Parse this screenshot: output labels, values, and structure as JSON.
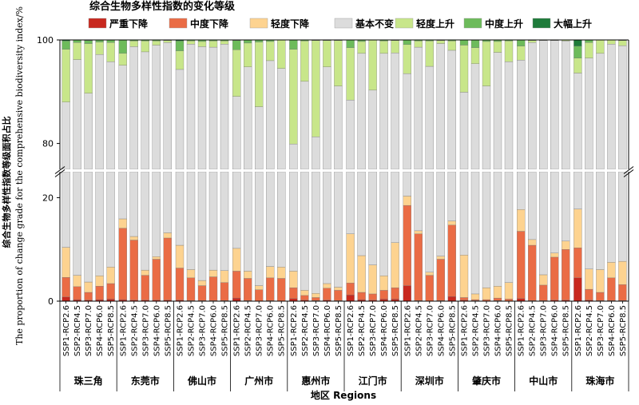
{
  "chart_data": {
    "type": "bar",
    "stacked": true,
    "legend_title": "综合生物多样性指数的变化等级",
    "ylabel_cn": "综合生物多样性指数等级面积占比",
    "ylabel_en": "The proportion of change grade for the comprehensive biodiversity index/%",
    "xlabel": "地区 Regions",
    "y_axis_break": true,
    "y_segments": [
      [
        0,
        25
      ],
      [
        75,
        100
      ]
    ],
    "yticks": [
      0,
      20,
      80,
      100
    ],
    "grid": false,
    "legend_position": "top-left",
    "colors": [
      "#c8281e",
      "#ea6c45",
      "#fdd390",
      "#dcdcdc",
      "#c8e68a",
      "#6dbb5b",
      "#1e7b3a"
    ],
    "series_names": [
      "严重下降",
      "中度下降",
      "轻度下降",
      "基本不变",
      "轻度上升",
      "中度上升",
      "大幅上升"
    ],
    "scenarios": [
      "SSP1-RCP2.6",
      "SSP2-RCP4.5",
      "SSP3-RCP7.0",
      "SSP4-RCP6.0",
      "SSP5-RCP8.5"
    ],
    "regions": [
      {
        "name": "珠三角",
        "bars": [
          [
            0.8,
            3.8,
            5.8,
            77.6,
            10.2,
            1.6,
            0.2
          ],
          [
            0.3,
            2.5,
            2.2,
            91.2,
            3.3,
            0.5,
            0.0
          ],
          [
            0.2,
            1.5,
            2.0,
            86.0,
            9.6,
            0.6,
            0.1
          ],
          [
            0.3,
            2.6,
            2.0,
            92.3,
            2.4,
            0.4,
            0.0
          ],
          [
            0.4,
            3.0,
            3.2,
            89.2,
            3.7,
            0.5,
            0.0
          ]
        ]
      },
      {
        "name": "东莞市",
        "bars": [
          [
            0.3,
            13.8,
            1.8,
            79.2,
            2.3,
            2.6,
            0.0
          ],
          [
            0.2,
            11.6,
            0.7,
            86.2,
            1.1,
            0.2,
            0.0
          ],
          [
            0.2,
            4.8,
            1.0,
            91.7,
            2.1,
            0.2,
            0.0
          ],
          [
            0.2,
            7.9,
            0.5,
            90.4,
            0.8,
            0.2,
            0.0
          ],
          [
            0.2,
            12.0,
            1.0,
            86.3,
            0.4,
            0.1,
            0.0
          ]
        ]
      },
      {
        "name": "佛山市",
        "bars": [
          [
            0.2,
            6.2,
            4.4,
            83.5,
            3.6,
            1.9,
            0.2
          ],
          [
            0.1,
            4.4,
            1.6,
            93.1,
            0.6,
            0.2,
            0.0
          ],
          [
            0.1,
            2.9,
            1.0,
            94.7,
            1.0,
            0.3,
            0.0
          ],
          [
            0.1,
            4.6,
            1.3,
            92.6,
            1.2,
            0.2,
            0.0
          ],
          [
            0.1,
            3.5,
            2.3,
            93.3,
            0.6,
            0.2,
            0.0
          ]
        ]
      },
      {
        "name": "广州市",
        "bars": [
          [
            0.6,
            5.2,
            4.4,
            78.9,
            9.0,
            1.8,
            0.1
          ],
          [
            0.1,
            4.3,
            1.4,
            89.0,
            4.6,
            0.6,
            0.0
          ],
          [
            0.0,
            2.2,
            0.8,
            84.1,
            12.5,
            0.4,
            0.0
          ],
          [
            0.1,
            4.4,
            2.2,
            89.3,
            3.7,
            0.3,
            0.0
          ],
          [
            0.0,
            4.4,
            2.2,
            87.9,
            5.5,
            0.0,
            0.0
          ]
        ]
      },
      {
        "name": "惠州市",
        "bars": [
          [
            0.5,
            2.1,
            3.2,
            74.1,
            18.3,
            1.8,
            0.0
          ],
          [
            0.2,
            0.9,
            1.0,
            89.9,
            7.8,
            0.2,
            0.0
          ],
          [
            0.1,
            0.6,
            0.8,
            79.8,
            18.6,
            0.1,
            0.0
          ],
          [
            0.2,
            2.3,
            0.9,
            91.4,
            5.1,
            0.1,
            0.0
          ],
          [
            0.1,
            2.0,
            0.6,
            88.4,
            8.8,
            0.1,
            0.0
          ]
        ]
      },
      {
        "name": "江门市",
        "bars": [
          [
            1.2,
            2.3,
            9.5,
            75.4,
            10.1,
            1.5,
            0.0
          ],
          [
            0.3,
            1.4,
            7.1,
            88.6,
            2.3,
            0.3,
            0.0
          ],
          [
            0.2,
            1.2,
            5.6,
            83.3,
            9.7,
            0.0,
            0.0
          ],
          [
            0.4,
            1.7,
            2.8,
            92.5,
            2.4,
            0.2,
            0.0
          ],
          [
            0.4,
            2.2,
            8.7,
            86.2,
            2.4,
            0.1,
            0.0
          ]
        ]
      },
      {
        "name": "深圳市",
        "bars": [
          [
            3.0,
            15.5,
            1.8,
            73.2,
            5.6,
            0.9,
            0.0
          ],
          [
            0.1,
            12.9,
            0.6,
            85.0,
            1.2,
            0.2,
            0.0
          ],
          [
            0.0,
            5.0,
            0.6,
            89.3,
            4.9,
            0.2,
            0.0
          ],
          [
            0.1,
            8.0,
            0.6,
            90.6,
            0.6,
            0.1,
            0.0
          ],
          [
            0.9,
            13.8,
            0.8,
            82.5,
            1.8,
            0.2,
            0.0
          ]
        ]
      },
      {
        "name": "肇庆市",
        "bars": [
          [
            0.2,
            0.5,
            8.2,
            81.0,
            9.1,
            1.0,
            0.0
          ],
          [
            0.1,
            0.2,
            1.1,
            94.0,
            3.1,
            1.5,
            0.0
          ],
          [
            0.0,
            0.3,
            2.3,
            88.5,
            8.6,
            0.3,
            0.0
          ],
          [
            0.1,
            0.5,
            2.3,
            94.7,
            2.1,
            0.3,
            0.0
          ],
          [
            0.0,
            0.4,
            3.2,
            92.2,
            4.0,
            0.2,
            0.0
          ]
        ]
      },
      {
        "name": "中山市",
        "bars": [
          [
            0.5,
            13.0,
            4.2,
            78.4,
            2.7,
            1.2,
            0.0
          ],
          [
            0.1,
            10.7,
            1.1,
            87.6,
            0.4,
            0.1,
            0.0
          ],
          [
            0.1,
            3.0,
            2.0,
            94.8,
            0.1,
            0.0,
            0.0
          ],
          [
            0.2,
            8.3,
            0.8,
            90.6,
            0.1,
            0.0,
            0.0
          ],
          [
            0.2,
            9.8,
            1.6,
            88.2,
            0.2,
            0.0,
            0.0
          ]
        ]
      },
      {
        "name": "珠海市",
        "bars": [
          [
            4.5,
            5.8,
            7.5,
            75.8,
            2.9,
            2.3,
            1.2
          ],
          [
            0.2,
            2.1,
            3.9,
            90.3,
            3.0,
            0.5,
            0.0
          ],
          [
            0.1,
            1.6,
            4.4,
            91.3,
            2.6,
            0.0,
            0.0
          ],
          [
            0.1,
            4.4,
            3.0,
            91.7,
            0.8,
            0.0,
            0.0
          ],
          [
            0.1,
            3.1,
            4.5,
            91.2,
            1.0,
            0.1,
            0.0
          ]
        ]
      }
    ]
  }
}
